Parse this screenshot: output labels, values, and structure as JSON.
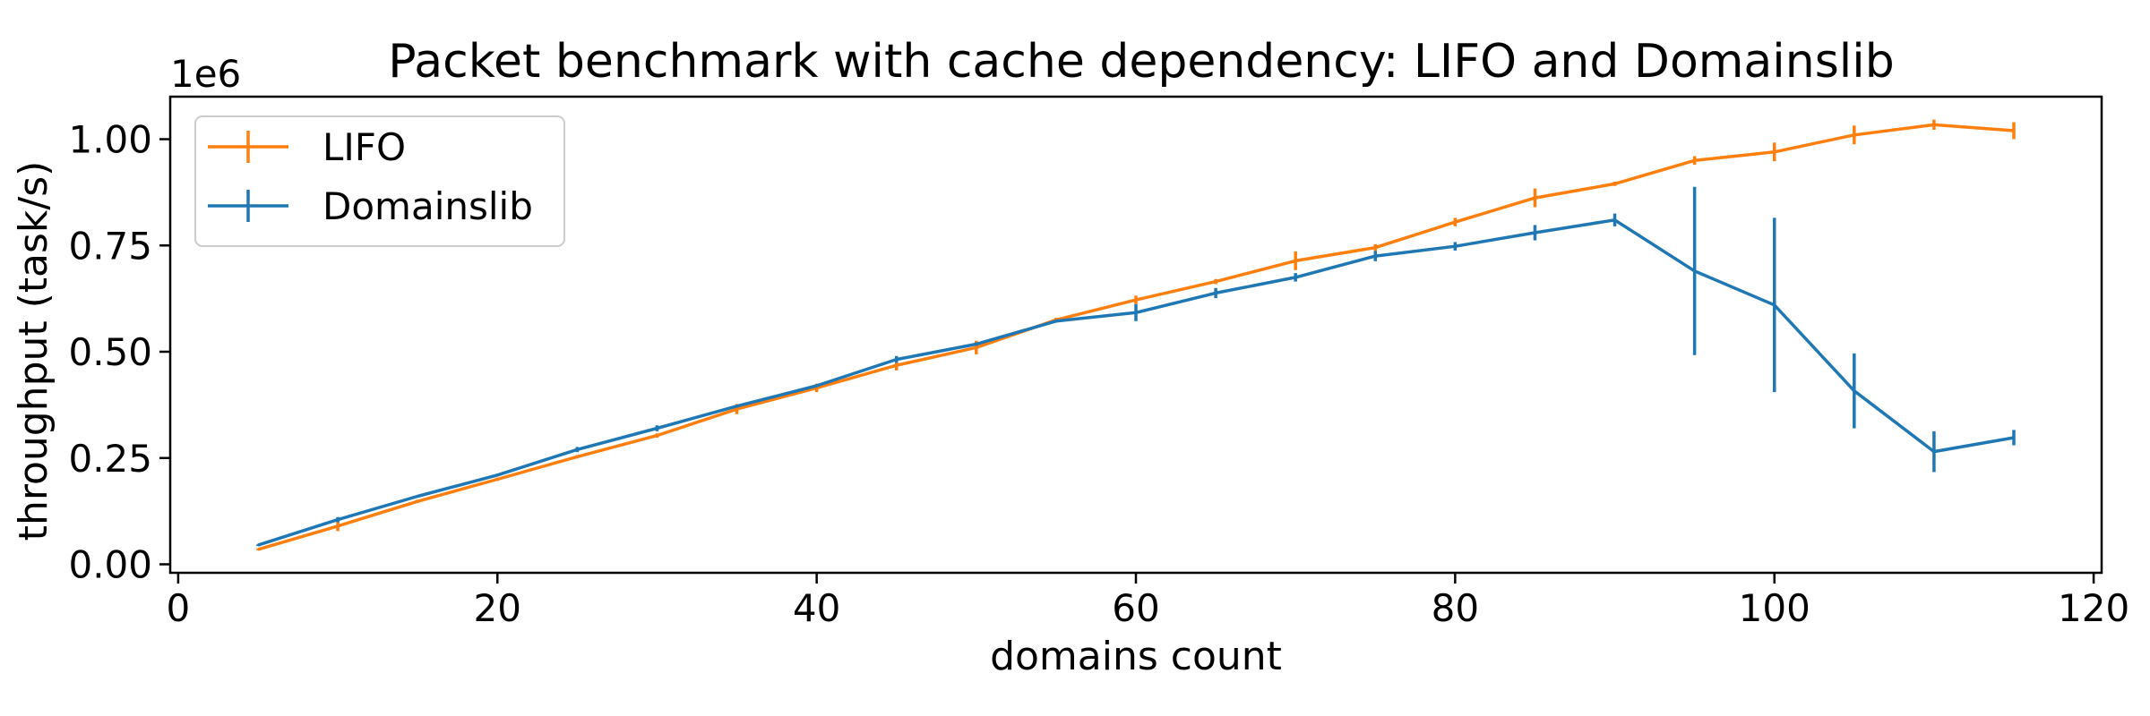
{
  "chart_data": {
    "type": "line",
    "title": "Packet benchmark with cache dependency: LIFO and Domainslib",
    "xlabel": "domains count",
    "ylabel": "throughput (task/s)",
    "y_scale_label": "1e6",
    "xlim": [
      -0.5,
      120.5
    ],
    "ylim": [
      -0.02,
      1.1
    ],
    "x_ticks": [
      0,
      20,
      40,
      60,
      80,
      100,
      120
    ],
    "x_tick_labels": [
      "0",
      "20",
      "40",
      "60",
      "80",
      "100",
      "120"
    ],
    "y_ticks": [
      0.0,
      0.25,
      0.5,
      0.75,
      1.0
    ],
    "y_tick_labels": [
      "0.00",
      "0.25",
      "0.50",
      "0.75",
      "1.00"
    ],
    "grid": false,
    "legend_position": "upper-left",
    "x": [
      5,
      10,
      15,
      20,
      25,
      30,
      35,
      40,
      45,
      50,
      55,
      60,
      65,
      70,
      75,
      80,
      85,
      90,
      95,
      100,
      105,
      110,
      115
    ],
    "series": [
      {
        "name": "LIFO",
        "color": "#ff7f0e",
        "values": [
          0.035,
          0.09,
          0.148,
          0.2,
          0.253,
          0.303,
          0.365,
          0.415,
          0.468,
          0.51,
          0.575,
          0.622,
          0.665,
          0.714,
          0.745,
          0.805,
          0.862,
          0.895,
          0.95,
          0.97,
          1.01,
          1.034,
          1.02
        ],
        "errors": [
          0.002,
          0.012,
          0.004,
          0.004,
          0.004,
          0.005,
          0.012,
          0.01,
          0.012,
          0.016,
          0.005,
          0.01,
          0.006,
          0.022,
          0.008,
          0.01,
          0.022,
          0.005,
          0.01,
          0.022,
          0.022,
          0.012,
          0.02
        ]
      },
      {
        "name": "Domainslib",
        "color": "#1f77b4",
        "values": [
          0.045,
          0.105,
          0.16,
          0.21,
          0.27,
          0.32,
          0.372,
          0.42,
          0.482,
          0.518,
          0.572,
          0.592,
          0.638,
          0.675,
          0.725,
          0.748,
          0.78,
          0.81,
          0.69,
          0.61,
          0.408,
          0.265,
          0.298
        ],
        "errors": [
          0.002,
          0.006,
          0.003,
          0.003,
          0.006,
          0.007,
          0.003,
          0.003,
          0.008,
          0.004,
          0.003,
          0.02,
          0.012,
          0.01,
          0.012,
          0.01,
          0.018,
          0.015,
          0.198,
          0.205,
          0.088,
          0.048,
          0.018
        ]
      }
    ]
  }
}
